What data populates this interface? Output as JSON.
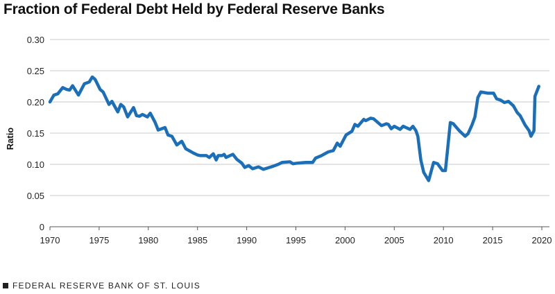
{
  "chart_data": {
    "type": "line",
    "title": "Fraction of Federal Debt Held by Federal Reserve Banks",
    "xlabel": "",
    "ylabel": "Ratio",
    "xlim": [
      1970,
      2020
    ],
    "ylim": [
      0,
      0.3
    ],
    "grid": true,
    "line_color": "#1a6fb8",
    "xticks": [
      "1970",
      "1975",
      "1980",
      "1985",
      "1990",
      "1995",
      "2000",
      "2005",
      "2010",
      "2015",
      "2020"
    ],
    "yticks": [
      "0",
      "0.05",
      "0.10",
      "0.15",
      "0.20",
      "0.25",
      "0.30"
    ],
    "series": [
      {
        "name": "Fraction of Federal Debt Held by Federal Reserve Banks",
        "x": [
          1970.0,
          1970.4,
          1970.8,
          1971.3,
          1971.7,
          1972.0,
          1972.3,
          1972.9,
          1973.5,
          1974.0,
          1974.3,
          1974.6,
          1975.1,
          1975.4,
          1976.0,
          1976.3,
          1976.9,
          1977.2,
          1977.5,
          1977.9,
          1978.5,
          1978.8,
          1979.1,
          1979.4,
          1979.9,
          1980.2,
          1980.7,
          1981.0,
          1981.7,
          1982.0,
          1982.4,
          1982.9,
          1983.4,
          1983.8,
          1984.6,
          1985.0,
          1985.3,
          1985.9,
          1986.2,
          1986.6,
          1986.9,
          1987.1,
          1987.5,
          1987.7,
          1987.9,
          1988.3,
          1988.6,
          1989.0,
          1989.5,
          1989.8,
          1990.2,
          1990.6,
          1991.2,
          1991.7,
          1992.3,
          1992.7,
          1993.2,
          1993.6,
          1994.4,
          1994.7,
          1995.2,
          1996.0,
          1996.7,
          1997.0,
          1997.6,
          1998.3,
          1998.8,
          1999.2,
          1999.5,
          2000.1,
          2000.7,
          2001.0,
          2001.3,
          2001.9,
          2002.1,
          2002.6,
          2002.9,
          2003.7,
          2004.2,
          2004.4,
          2004.7,
          2005.0,
          2005.6,
          2005.9,
          2006.6,
          2006.9,
          2007.2,
          2007.4,
          2007.7,
          2008.0,
          2008.5,
          2009.0,
          2009.4,
          2009.9,
          2010.2,
          2010.4,
          2010.7,
          2011.0,
          2011.6,
          2012.2,
          2012.5,
          2012.9,
          2013.2,
          2013.5,
          2013.8,
          2014.5,
          2015.1,
          2015.4,
          2015.8,
          2016.2,
          2016.6,
          2017.1,
          2017.5,
          2017.8,
          2018.3,
          2018.7,
          2018.9,
          2019.2,
          2019.3,
          2019.7
        ],
        "y": [
          0.2,
          0.211,
          0.213,
          0.223,
          0.22,
          0.219,
          0.226,
          0.211,
          0.229,
          0.232,
          0.24,
          0.236,
          0.22,
          0.216,
          0.196,
          0.201,
          0.184,
          0.196,
          0.192,
          0.176,
          0.191,
          0.178,
          0.177,
          0.18,
          0.176,
          0.182,
          0.167,
          0.155,
          0.159,
          0.147,
          0.145,
          0.131,
          0.137,
          0.125,
          0.118,
          0.115,
          0.114,
          0.114,
          0.111,
          0.117,
          0.107,
          0.114,
          0.114,
          0.116,
          0.111,
          0.114,
          0.116,
          0.108,
          0.102,
          0.095,
          0.098,
          0.093,
          0.096,
          0.092,
          0.095,
          0.097,
          0.1,
          0.103,
          0.104,
          0.101,
          0.102,
          0.103,
          0.103,
          0.11,
          0.114,
          0.12,
          0.122,
          0.134,
          0.129,
          0.147,
          0.153,
          0.164,
          0.161,
          0.172,
          0.17,
          0.174,
          0.173,
          0.162,
          0.165,
          0.164,
          0.157,
          0.161,
          0.156,
          0.161,
          0.156,
          0.161,
          0.154,
          0.145,
          0.107,
          0.087,
          0.074,
          0.103,
          0.101,
          0.09,
          0.09,
          0.121,
          0.167,
          0.165,
          0.154,
          0.145,
          0.149,
          0.163,
          0.176,
          0.207,
          0.216,
          0.214,
          0.214,
          0.205,
          0.203,
          0.199,
          0.201,
          0.194,
          0.183,
          0.178,
          0.163,
          0.154,
          0.145,
          0.154,
          0.209,
          0.225
        ]
      }
    ]
  },
  "footer": {
    "source": "FEDERAL RESERVE BANK OF ST. LOUIS"
  }
}
